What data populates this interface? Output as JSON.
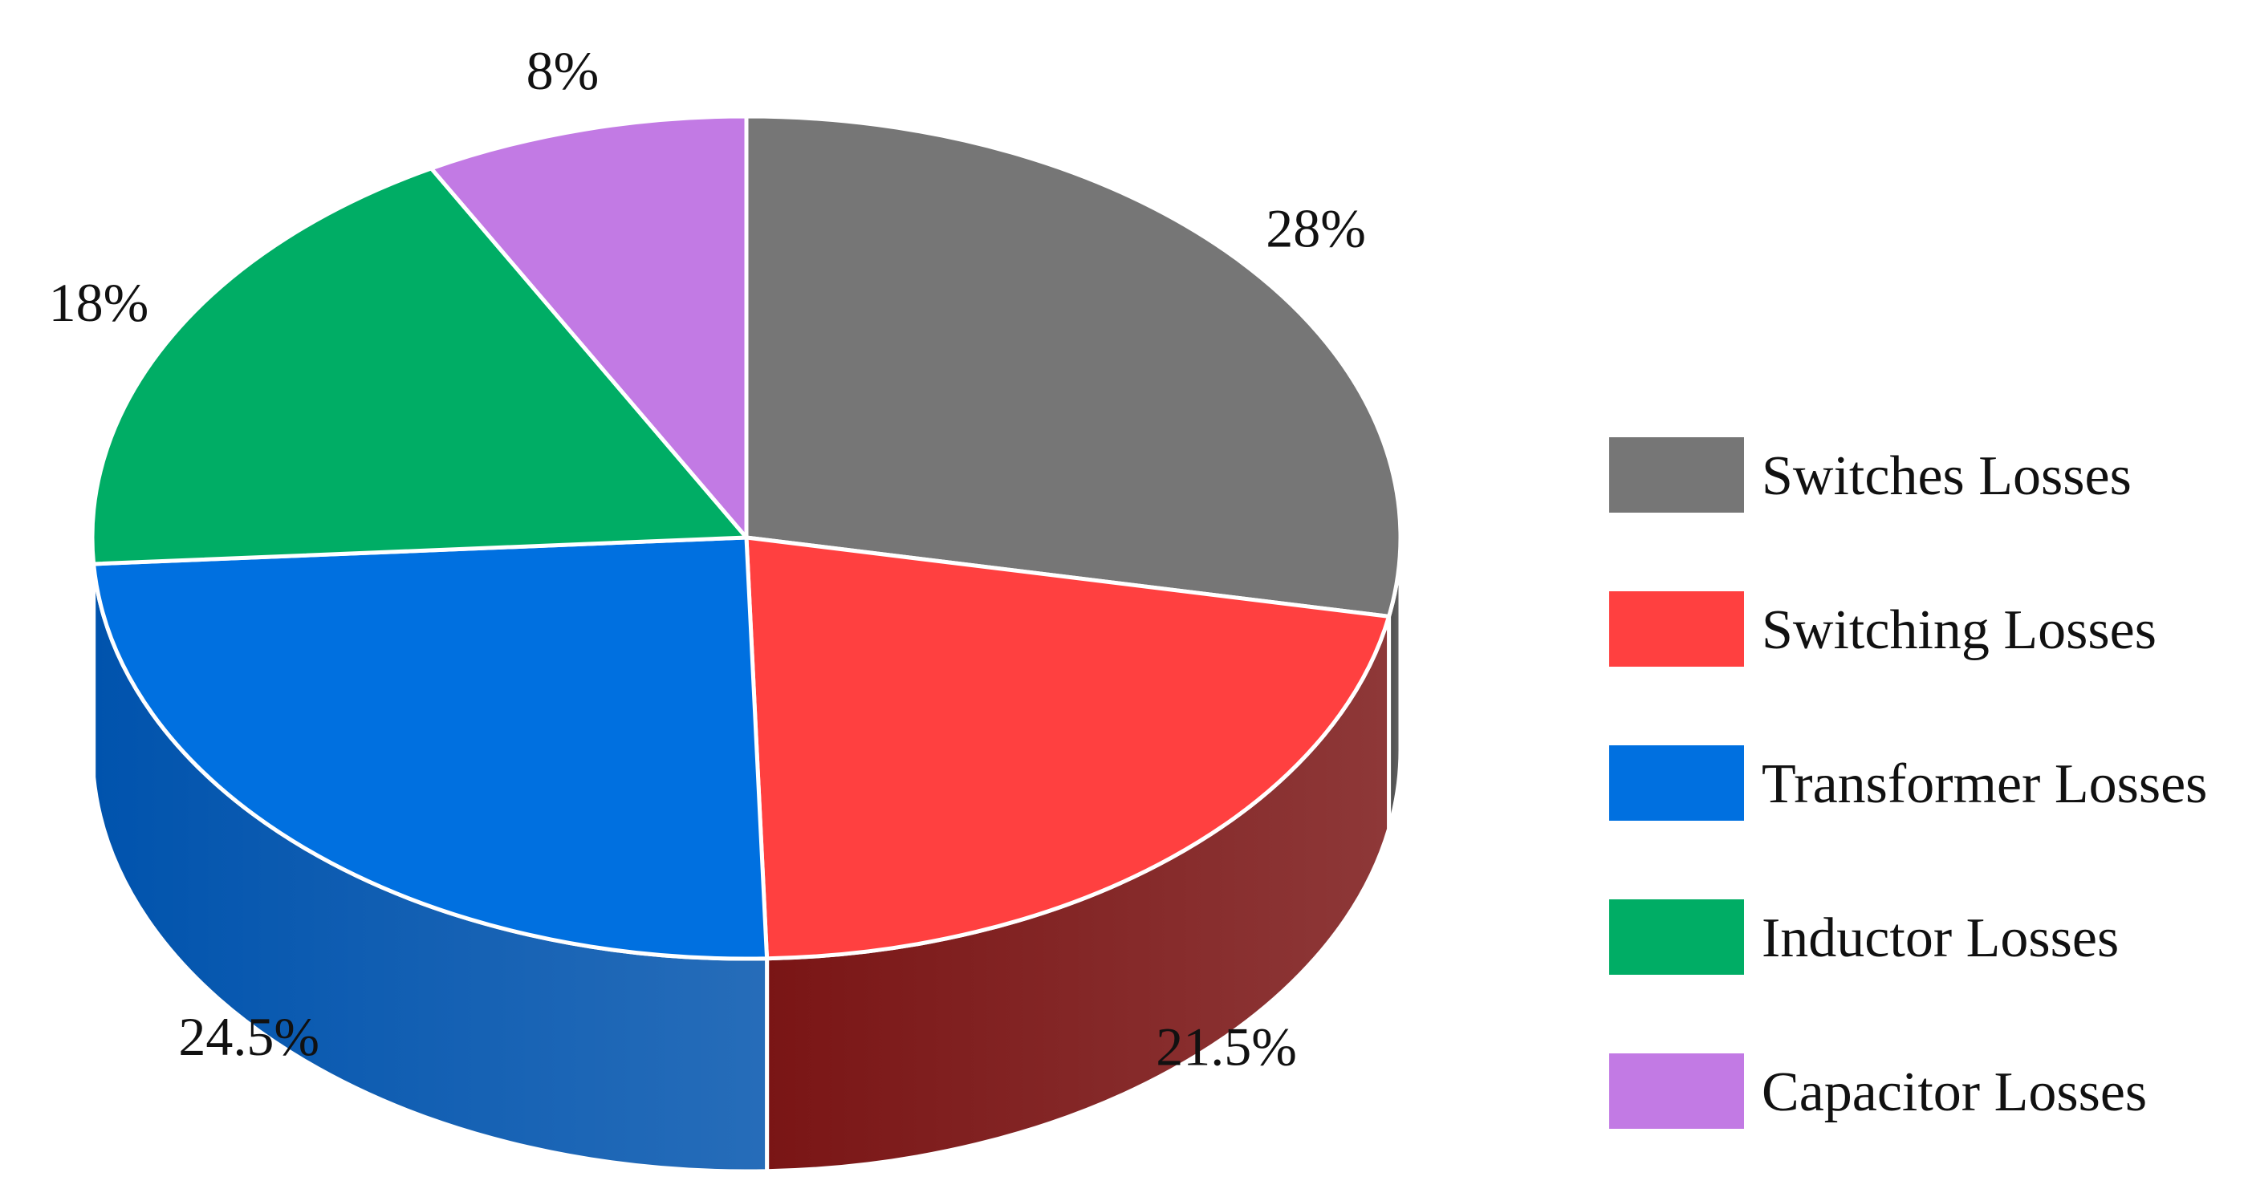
{
  "chart_data": {
    "type": "pie",
    "style": "3d-cylinder",
    "start": "top, clockwise",
    "legend_position": "right",
    "categories": [
      "Switches Losses",
      "Switching Losses",
      "Transformer Losses",
      "Inductor Losses",
      "Capacitor Losses"
    ],
    "values": [
      28,
      21.5,
      24.5,
      18,
      8
    ],
    "labels": [
      "28%",
      "21.5%",
      "24.5%",
      "18%",
      "8%"
    ],
    "colors": [
      "#767676",
      "#FF4040",
      "#0070E0",
      "#00AD65",
      "#C27AE4"
    ],
    "side_colors": [
      "#4a4a4a",
      "#7a1515",
      "#0053ad",
      "#007a48",
      "#8a4ca8"
    ]
  }
}
